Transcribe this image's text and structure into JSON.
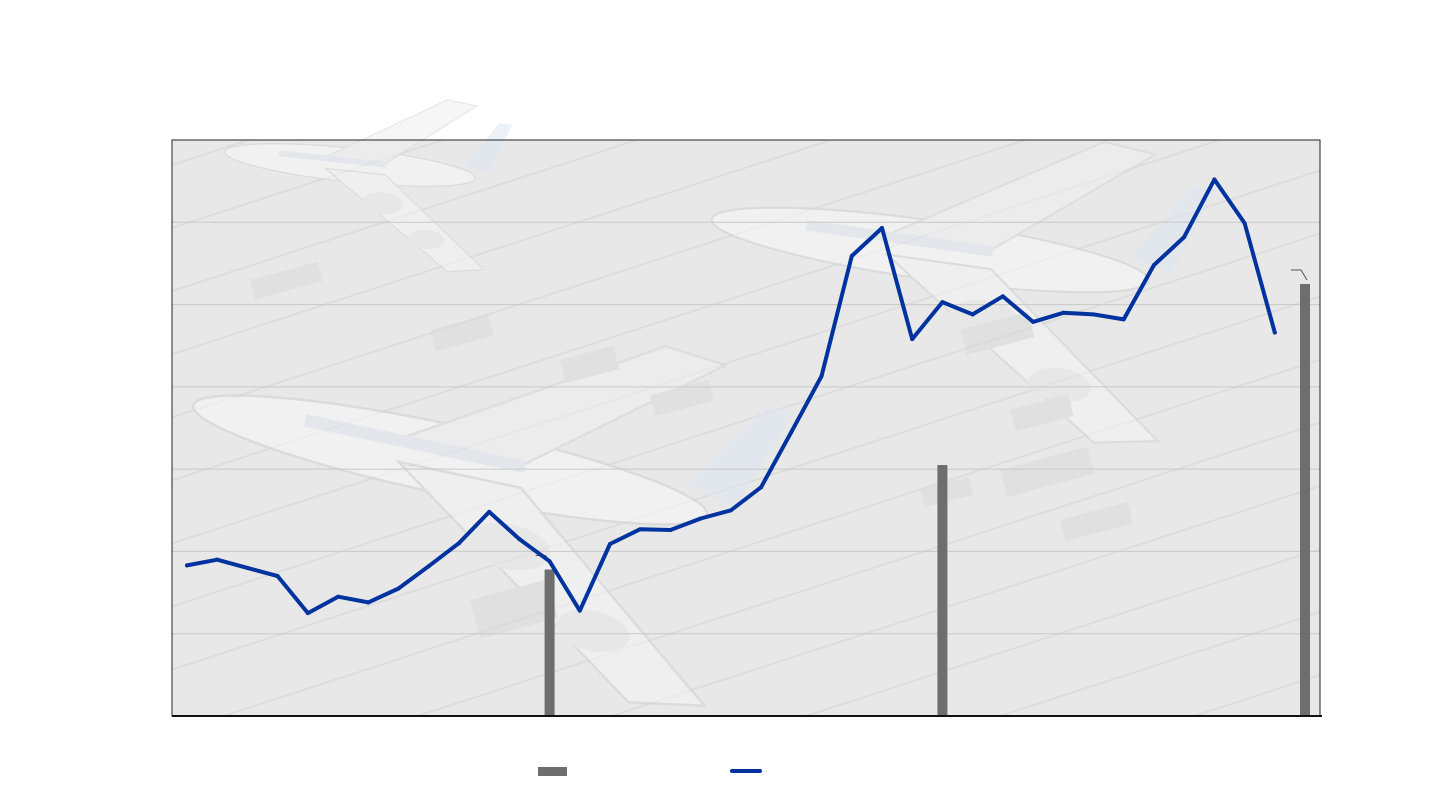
{
  "chart_data": {
    "type": "bar+line",
    "title": "",
    "xlabel": "",
    "ylabel": "",
    "grid": true,
    "legend_position": "bottom-center",
    "colors": {
      "bars": "#6e6e6e",
      "line": "#0033a0",
      "grid": "#c8c8c8",
      "plot_background": "#eeeeee",
      "frame": "#222222"
    },
    "x_count": 38,
    "ylim": [
      0,
      7
    ],
    "series": [
      {
        "type": "line",
        "name": "",
        "values": [
          1.83,
          1.9,
          1.8,
          1.7,
          1.25,
          1.45,
          1.38,
          1.55,
          1.82,
          2.1,
          2.48,
          2.15,
          1.88,
          1.28,
          2.09,
          2.27,
          2.26,
          2.4,
          2.5,
          2.78,
          3.45,
          4.13,
          5.59,
          5.93,
          4.58,
          5.03,
          4.88,
          5.1,
          4.79,
          4.9,
          4.88,
          4.82,
          5.48,
          5.82,
          6.52,
          5.99,
          4.66
        ]
      },
      {
        "type": "bar",
        "name": "",
        "points": [
          {
            "x": 12,
            "y": 1.78
          },
          {
            "x": 25,
            "y": 3.05
          },
          {
            "x": 37,
            "y": 5.25
          }
        ]
      }
    ],
    "annotation_marks": [
      {
        "near_bar_x": 12
      },
      {
        "near_bar_x": 37
      }
    ]
  },
  "legend": {
    "bar_label": "",
    "line_label": ""
  }
}
